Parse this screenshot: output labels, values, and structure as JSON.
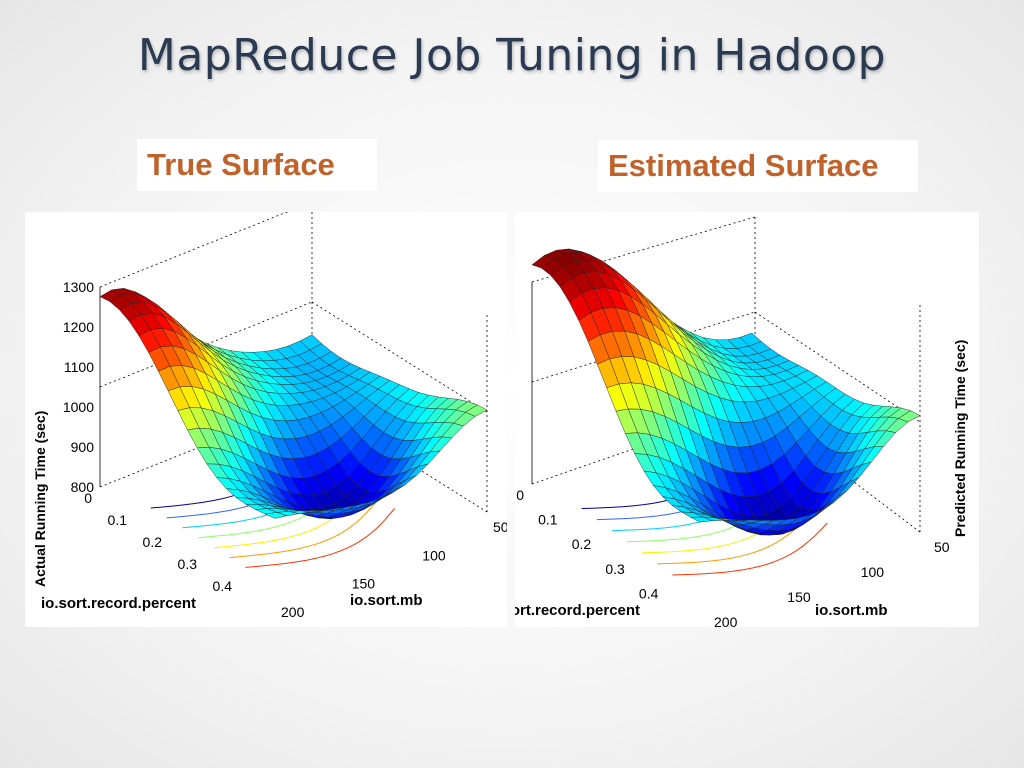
{
  "page": {
    "title": "MapReduce Job Tuning in Hadoop"
  },
  "colors": {
    "title": "#2a3a52",
    "label": "#c0622a"
  },
  "chart_data": [
    {
      "type": "surface",
      "title": "True Surface",
      "xlabel": "io.sort.mb",
      "ylabel": "io.sort.record.percent",
      "zlabel": "Actual Running Time (sec)",
      "x_ticks": [
        "50",
        "100",
        "150",
        "200"
      ],
      "y_ticks": [
        "0",
        "0.1",
        "0.2",
        "0.3",
        "0.4"
      ],
      "z_ticks": [
        "800",
        "900",
        "1000",
        "1100",
        "1200",
        "1300"
      ],
      "xlim": [
        50,
        200
      ],
      "ylim": [
        0,
        0.5
      ],
      "zlim": [
        800,
        1300
      ],
      "colormap": "jet",
      "grid": true,
      "contours_on_floor": true
    },
    {
      "type": "surface",
      "title": "Estimated Surface",
      "xlabel": "io.sort.mb",
      "ylabel": "io.sort.record.percent",
      "zlabel": "Predicted Running Time (sec)",
      "x_ticks": [
        "50",
        "100",
        "150",
        "200"
      ],
      "y_ticks": [
        "0",
        "0.1",
        "0.2",
        "0.3",
        "0.4"
      ],
      "xlim": [
        50,
        200
      ],
      "ylim": [
        0,
        0.5
      ],
      "zlim": [
        800,
        1300
      ],
      "colormap": "jet",
      "grid": true,
      "contours_on_floor": true
    }
  ]
}
